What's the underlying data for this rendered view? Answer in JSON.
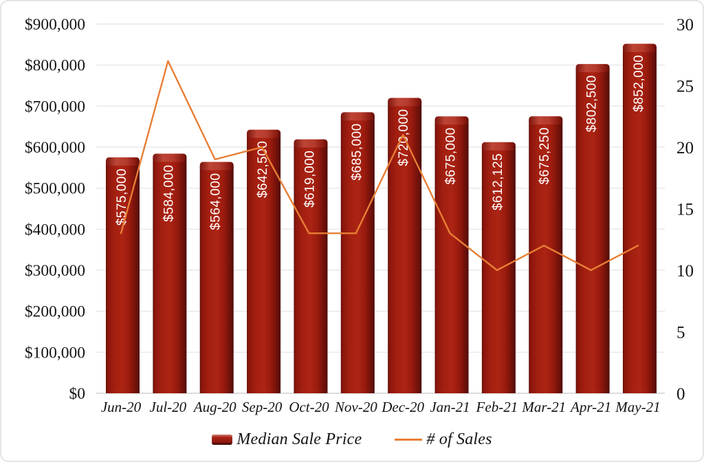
{
  "chart_data": {
    "type": "bar",
    "subtype": "combo-bar-line-dual-axis",
    "categories": [
      "Jun-20",
      "Jul-20",
      "Aug-20",
      "Sep-20",
      "Oct-20",
      "Nov-20",
      "Dec-20",
      "Jan-21",
      "Feb-21",
      "Mar-21",
      "Apr-21",
      "May-21"
    ],
    "series": [
      {
        "name": "Median Sale Price",
        "type": "bar",
        "axis": "left",
        "values": [
          575000,
          584000,
          564000,
          642500,
          619000,
          685000,
          720000,
          675000,
          612125,
          675250,
          802500,
          852000
        ],
        "data_labels": [
          "$575,000",
          "$584,000",
          "$564,000",
          "$642,500",
          "$619,000",
          "$685,000",
          "$720,000",
          "$675,000",
          "$612,125",
          "$675,250",
          "$802,500",
          "$852,000"
        ],
        "color": "#a32012"
      },
      {
        "name": "# of Sales",
        "type": "line",
        "axis": "right",
        "values": [
          13,
          27,
          19,
          20,
          13,
          13,
          21,
          13,
          10,
          12,
          10,
          12
        ],
        "color": "#e87e35"
      }
    ],
    "left_axis": {
      "min": 0,
      "max": 900000,
      "step": 100000,
      "tick_labels": [
        "$0",
        "$100,000",
        "$200,000",
        "$300,000",
        "$400,000",
        "$500,000",
        "$600,000",
        "$700,000",
        "$800,000",
        "$900,000"
      ]
    },
    "right_axis": {
      "min": 0,
      "max": 30,
      "step": 5,
      "tick_labels": [
        "0",
        "5",
        "10",
        "15",
        "20",
        "25",
        "30"
      ]
    },
    "title": "",
    "xlabel": "",
    "ylabel": "",
    "grid": "horizontal",
    "legend_position": "bottom",
    "colors": {
      "bar_main": "#a32012",
      "bar_edge_dark": "#560b06",
      "bar_highlight": "#c24b3b",
      "line": "#e87e35",
      "gridline": "#e2e2e2",
      "axis_text": "#141414",
      "bar_label_text": "#ffffff",
      "background": "#ffffff",
      "frame_border": "#e4e4e6"
    }
  },
  "legend": {
    "bar_label": "Median Sale Price",
    "line_label": "# of Sales"
  }
}
